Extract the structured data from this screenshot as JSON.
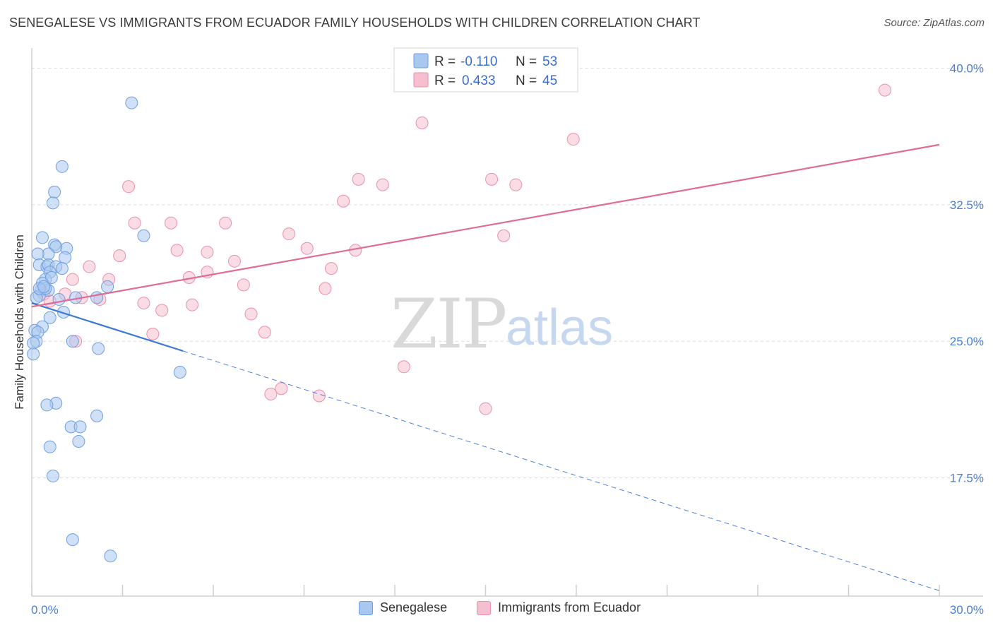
{
  "title": "SENEGALESE VS IMMIGRANTS FROM ECUADOR FAMILY HOUSEHOLDS WITH CHILDREN CORRELATION CHART",
  "source": "Source: ZipAtlas.com",
  "watermark": {
    "zip": "ZIP",
    "atlas": "atlas"
  },
  "colors": {
    "blue_fill": "#a9c8f0",
    "blue_stroke": "#6f9fe0",
    "blue_line": "#3b78d8",
    "pink_fill": "#f6bfd0",
    "pink_stroke": "#ea8fad",
    "pink_line": "#e06b94",
    "tick_text": "#4a7fd4"
  },
  "legend": {
    "r_label": "R =",
    "n_label": "N =",
    "rows": [
      {
        "series": "Senegalese",
        "r": "-0.110",
        "n": "53"
      },
      {
        "series": "Immigrants from Ecuador",
        "r": "0.433",
        "n": "45"
      }
    ]
  },
  "chart_data": {
    "type": "scatter",
    "title": "SENEGALESE VS IMMIGRANTS FROM ECUADOR FAMILY HOUSEHOLDS WITH CHILDREN CORRELATION CHART",
    "xlabel": "",
    "ylabel": "Family Households with Children",
    "xlim": [
      0,
      30
    ],
    "ylim": [
      11,
      41.5
    ],
    "x_tick_labels": [
      "0.0%",
      "30.0%"
    ],
    "y_ticks": [
      17.5,
      25.0,
      32.5,
      40.0
    ],
    "y_tick_labels": [
      "17.5%",
      "25.0%",
      "32.5%",
      "40.0%"
    ],
    "grid": "horizontal dashed",
    "legend_position": "top-center",
    "series": [
      {
        "name": "Senegalese",
        "points": [
          [
            3.3,
            38.1
          ],
          [
            1.0,
            34.6
          ],
          [
            0.75,
            33.2
          ],
          [
            0.7,
            32.6
          ],
          [
            3.7,
            30.8
          ],
          [
            0.35,
            30.7
          ],
          [
            0.75,
            30.3
          ],
          [
            1.15,
            30.1
          ],
          [
            0.8,
            30.2
          ],
          [
            0.55,
            29.8
          ],
          [
            0.2,
            29.8
          ],
          [
            1.1,
            29.6
          ],
          [
            0.25,
            29.2
          ],
          [
            0.5,
            29.1
          ],
          [
            0.55,
            29.2
          ],
          [
            0.8,
            29.1
          ],
          [
            1.0,
            29.0
          ],
          [
            0.6,
            28.8
          ],
          [
            0.45,
            28.4
          ],
          [
            0.65,
            28.5
          ],
          [
            0.35,
            28.2
          ],
          [
            2.5,
            28.0
          ],
          [
            0.3,
            27.8
          ],
          [
            0.55,
            27.8
          ],
          [
            0.25,
            27.5
          ],
          [
            0.15,
            27.4
          ],
          [
            1.45,
            27.4
          ],
          [
            2.15,
            27.4
          ],
          [
            0.9,
            27.3
          ],
          [
            1.05,
            26.6
          ],
          [
            0.6,
            26.3
          ],
          [
            0.35,
            25.8
          ],
          [
            0.1,
            25.6
          ],
          [
            0.2,
            25.5
          ],
          [
            0.15,
            25.0
          ],
          [
            0.05,
            24.9
          ],
          [
            1.35,
            25.0
          ],
          [
            2.2,
            24.6
          ],
          [
            0.05,
            24.3
          ],
          [
            4.9,
            23.3
          ],
          [
            0.8,
            21.6
          ],
          [
            0.5,
            21.5
          ],
          [
            2.15,
            20.9
          ],
          [
            1.3,
            20.3
          ],
          [
            1.6,
            20.3
          ],
          [
            1.55,
            19.5
          ],
          [
            0.6,
            19.2
          ],
          [
            0.7,
            17.6
          ],
          [
            1.35,
            14.1
          ],
          [
            2.6,
            13.2
          ],
          [
            0.45,
            27.9
          ],
          [
            0.25,
            27.9
          ],
          [
            0.4,
            28.0
          ]
        ]
      },
      {
        "name": "Immigrants from Ecuador",
        "points": [
          [
            28.2,
            38.8
          ],
          [
            12.9,
            37.0
          ],
          [
            17.9,
            36.1
          ],
          [
            3.2,
            33.5
          ],
          [
            10.8,
            33.9
          ],
          [
            15.2,
            33.9
          ],
          [
            11.6,
            33.6
          ],
          [
            16.0,
            33.6
          ],
          [
            10.3,
            32.7
          ],
          [
            3.4,
            31.5
          ],
          [
            4.6,
            31.5
          ],
          [
            6.4,
            31.5
          ],
          [
            8.5,
            30.9
          ],
          [
            15.6,
            30.8
          ],
          [
            9.1,
            30.1
          ],
          [
            10.7,
            30.0
          ],
          [
            4.8,
            30.0
          ],
          [
            5.8,
            29.9
          ],
          [
            2.9,
            29.7
          ],
          [
            6.7,
            29.4
          ],
          [
            1.9,
            29.1
          ],
          [
            9.9,
            29.0
          ],
          [
            5.8,
            28.8
          ],
          [
            5.2,
            28.5
          ],
          [
            2.55,
            28.4
          ],
          [
            1.35,
            28.4
          ],
          [
            7.0,
            28.1
          ],
          [
            9.7,
            27.9
          ],
          [
            1.1,
            27.6
          ],
          [
            1.65,
            27.4
          ],
          [
            2.25,
            27.3
          ],
          [
            0.4,
            27.6
          ],
          [
            3.7,
            27.1
          ],
          [
            5.3,
            27.0
          ],
          [
            4.3,
            26.7
          ],
          [
            7.25,
            26.5
          ],
          [
            7.7,
            25.5
          ],
          [
            4.0,
            25.4
          ],
          [
            1.45,
            25.0
          ],
          [
            12.3,
            23.6
          ],
          [
            8.25,
            22.4
          ],
          [
            7.9,
            22.1
          ],
          [
            9.5,
            22.0
          ],
          [
            15.0,
            21.3
          ],
          [
            0.6,
            27.2
          ]
        ]
      }
    ],
    "trendlines": [
      {
        "series": "Senegalese",
        "x": [
          0,
          30
        ],
        "y": [
          27.1,
          11.3
        ],
        "solid_until_x": 5.0
      },
      {
        "series": "Immigrants from Ecuador",
        "x": [
          0,
          30
        ],
        "y": [
          26.9,
          35.8
        ]
      }
    ]
  }
}
